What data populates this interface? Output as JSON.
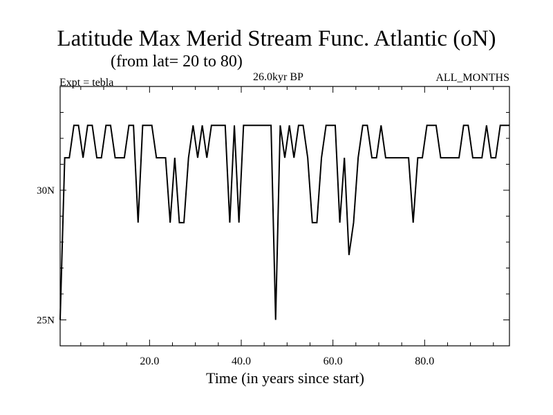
{
  "chart_data": {
    "type": "line",
    "title": "Latitude Max Merid Stream Func. Atlantic (oN)",
    "subtitle": "(from lat= 20 to 80)",
    "top_left_label": "Expt = tebla",
    "top_center_label": "26.0kyr BP",
    "top_right_label": "ALL_MONTHS",
    "xlabel": "Time (in years since start)",
    "ylabel": "",
    "xlim": [
      0.5,
      98.5
    ],
    "ylim": [
      24.0,
      34.0
    ],
    "x_ticks": [
      {
        "value": 20,
        "label": "20.0"
      },
      {
        "value": 40,
        "label": "40.0"
      },
      {
        "value": 60,
        "label": "60.0"
      },
      {
        "value": 80,
        "label": "80.0"
      }
    ],
    "y_ticks": [
      {
        "value": 25,
        "label": "25N"
      },
      {
        "value": 30,
        "label": "30N"
      }
    ],
    "grid": false,
    "series": [
      {
        "color": "#000000",
        "x": [
          0.5,
          1.5,
          2.5,
          3.5,
          4.5,
          5.5,
          6.5,
          7.5,
          8.5,
          9.5,
          10.5,
          11.5,
          12.5,
          13.5,
          14.5,
          15.5,
          16.5,
          17.5,
          18.5,
          19.5,
          20.5,
          21.5,
          22.5,
          23.5,
          24.5,
          25.5,
          26.5,
          27.5,
          28.5,
          29.5,
          30.5,
          31.5,
          32.5,
          33.5,
          34.5,
          35.5,
          36.5,
          37.5,
          38.5,
          39.5,
          40.5,
          41.5,
          42.5,
          43.5,
          44.5,
          45.5,
          46.5,
          47.5,
          48.5,
          49.5,
          50.5,
          51.5,
          52.5,
          53.5,
          54.5,
          55.5,
          56.5,
          57.5,
          58.5,
          59.5,
          60.5,
          61.5,
          62.5,
          63.5,
          64.5,
          65.5,
          66.5,
          67.5,
          68.5,
          69.5,
          70.5,
          71.5,
          72.5,
          73.5,
          74.5,
          75.5,
          76.5,
          77.5,
          78.5,
          79.5,
          80.5,
          81.5,
          82.5,
          83.5,
          84.5,
          85.5,
          86.5,
          87.5,
          88.5,
          89.5,
          90.5,
          91.5,
          92.5,
          93.5,
          94.5,
          95.5,
          96.5,
          97.5,
          98.5
        ],
        "y": [
          25.0,
          31.25,
          31.25,
          32.5,
          32.5,
          31.25,
          32.5,
          32.5,
          31.25,
          31.25,
          32.5,
          32.5,
          31.25,
          31.25,
          31.25,
          32.5,
          32.5,
          28.75,
          32.5,
          32.5,
          32.5,
          31.25,
          31.25,
          31.25,
          28.75,
          31.25,
          28.75,
          28.75,
          31.25,
          32.5,
          31.25,
          32.5,
          31.25,
          32.5,
          32.5,
          32.5,
          32.5,
          28.75,
          32.5,
          28.75,
          32.5,
          32.5,
          32.5,
          32.5,
          32.5,
          32.5,
          32.5,
          25.0,
          32.5,
          31.25,
          32.5,
          31.25,
          32.5,
          32.5,
          31.25,
          28.75,
          28.75,
          31.25,
          32.5,
          32.5,
          32.5,
          28.75,
          31.25,
          27.5,
          28.75,
          31.25,
          32.5,
          32.5,
          31.25,
          31.25,
          32.5,
          31.25,
          31.25,
          31.25,
          31.25,
          31.25,
          31.25,
          28.75,
          31.25,
          31.25,
          32.5,
          32.5,
          32.5,
          31.25,
          31.25,
          31.25,
          31.25,
          31.25,
          32.5,
          32.5,
          31.25,
          31.25,
          31.25,
          32.5,
          31.25,
          31.25,
          32.5,
          32.5,
          32.5
        ]
      }
    ]
  }
}
